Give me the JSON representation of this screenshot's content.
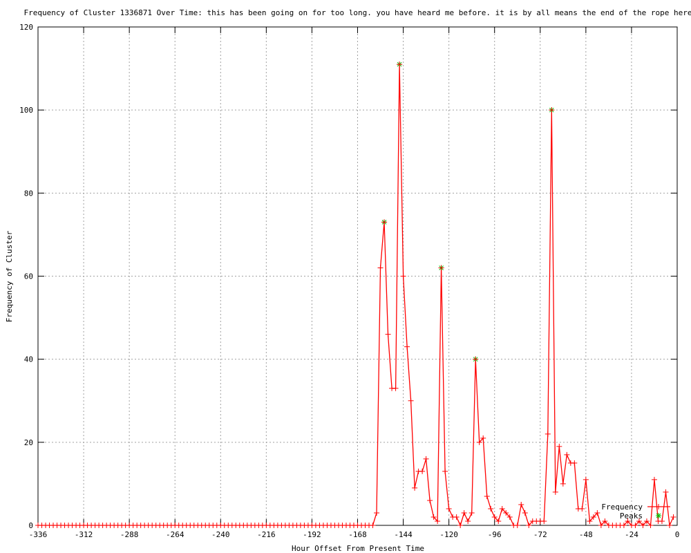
{
  "chart_data": {
    "type": "line",
    "title": "Frequency of Cluster 1336871 Over Time: this has been going on for too long. you have heard me before. it is by all means the end of the rope here",
    "xlabel": "Hour Offset From Present Time",
    "ylabel": "Frequency of Cluster",
    "xlim": [
      -336,
      0
    ],
    "ylim": [
      0,
      120
    ],
    "xticks": [
      -336,
      -312,
      -288,
      -264,
      -240,
      -216,
      -192,
      -168,
      -144,
      -120,
      -96,
      -72,
      -48,
      -24,
      0
    ],
    "yticks": [
      0,
      20,
      40,
      60,
      80,
      100,
      120
    ],
    "grid": true,
    "legend_position": "bottom-right",
    "series": [
      {
        "name": "Frequency",
        "color": "#ff0000",
        "marker": "plus",
        "x": [
          -336,
          -334,
          -332,
          -330,
          -328,
          -326,
          -324,
          -322,
          -320,
          -318,
          -316,
          -314,
          -312,
          -310,
          -308,
          -306,
          -304,
          -302,
          -300,
          -298,
          -296,
          -294,
          -292,
          -290,
          -288,
          -286,
          -284,
          -282,
          -280,
          -278,
          -276,
          -274,
          -272,
          -270,
          -268,
          -266,
          -264,
          -262,
          -260,
          -258,
          -256,
          -254,
          -252,
          -250,
          -248,
          -246,
          -244,
          -242,
          -240,
          -238,
          -236,
          -234,
          -232,
          -230,
          -228,
          -226,
          -224,
          -222,
          -220,
          -218,
          -216,
          -214,
          -212,
          -210,
          -208,
          -206,
          -204,
          -202,
          -200,
          -198,
          -196,
          -194,
          -192,
          -190,
          -188,
          -186,
          -184,
          -182,
          -180,
          -178,
          -176,
          -174,
          -172,
          -170,
          -168,
          -166,
          -164,
          -162,
          -160,
          -158,
          -156,
          -154,
          -152,
          -150,
          -148,
          -146,
          -144,
          -142,
          -140,
          -138,
          -136,
          -134,
          -132,
          -130,
          -128,
          -126,
          -124,
          -122,
          -120,
          -118,
          -116,
          -114,
          -112,
          -110,
          -108,
          -106,
          -104,
          -102,
          -100,
          -98,
          -96,
          -94,
          -92,
          -90,
          -88,
          -86,
          -84,
          -82,
          -80,
          -78,
          -76,
          -74,
          -72,
          -70,
          -68,
          -66,
          -64,
          -62,
          -60,
          -58,
          -56,
          -54,
          -52,
          -50,
          -48,
          -46,
          -44,
          -42,
          -40,
          -38,
          -36,
          -34,
          -32,
          -30,
          -28,
          -26,
          -24,
          -22,
          -20,
          -18,
          -16,
          -14,
          -12,
          -10,
          -8,
          -6,
          -4,
          -2
        ],
        "y": [
          0,
          0,
          0,
          0,
          0,
          0,
          0,
          0,
          0,
          0,
          0,
          0,
          0,
          0,
          0,
          0,
          0,
          0,
          0,
          0,
          0,
          0,
          0,
          0,
          0,
          0,
          0,
          0,
          0,
          0,
          0,
          0,
          0,
          0,
          0,
          0,
          0,
          0,
          0,
          0,
          0,
          0,
          0,
          0,
          0,
          0,
          0,
          0,
          0,
          0,
          0,
          0,
          0,
          0,
          0,
          0,
          0,
          0,
          0,
          0,
          0,
          0,
          0,
          0,
          0,
          0,
          0,
          0,
          0,
          0,
          0,
          0,
          0,
          0,
          0,
          0,
          0,
          0,
          0,
          0,
          0,
          0,
          0,
          0,
          0,
          0,
          0,
          0,
          0,
          3,
          62,
          73,
          46,
          33,
          33,
          111,
          60,
          43,
          30,
          9,
          13,
          13,
          16,
          6,
          2,
          1,
          62,
          13,
          4,
          2,
          2,
          0,
          3,
          1,
          3,
          40,
          20,
          21,
          7,
          4,
          2,
          1,
          4,
          3,
          2,
          0,
          0,
          5,
          3,
          0,
          1,
          1,
          1,
          1,
          22,
          100,
          8,
          19,
          10,
          17,
          15,
          15,
          4,
          4,
          11,
          1,
          2,
          3,
          0,
          1,
          0,
          0,
          0,
          0,
          0,
          1,
          0,
          0,
          1,
          0,
          1,
          0,
          11,
          1,
          1,
          8,
          0,
          2
        ]
      },
      {
        "name": "Peaks",
        "color": "#00c000",
        "marker": "asterisk",
        "x": [
          -154,
          -146,
          -124,
          -106,
          -66
        ],
        "y": [
          73,
          111,
          62,
          40,
          100
        ]
      }
    ]
  }
}
